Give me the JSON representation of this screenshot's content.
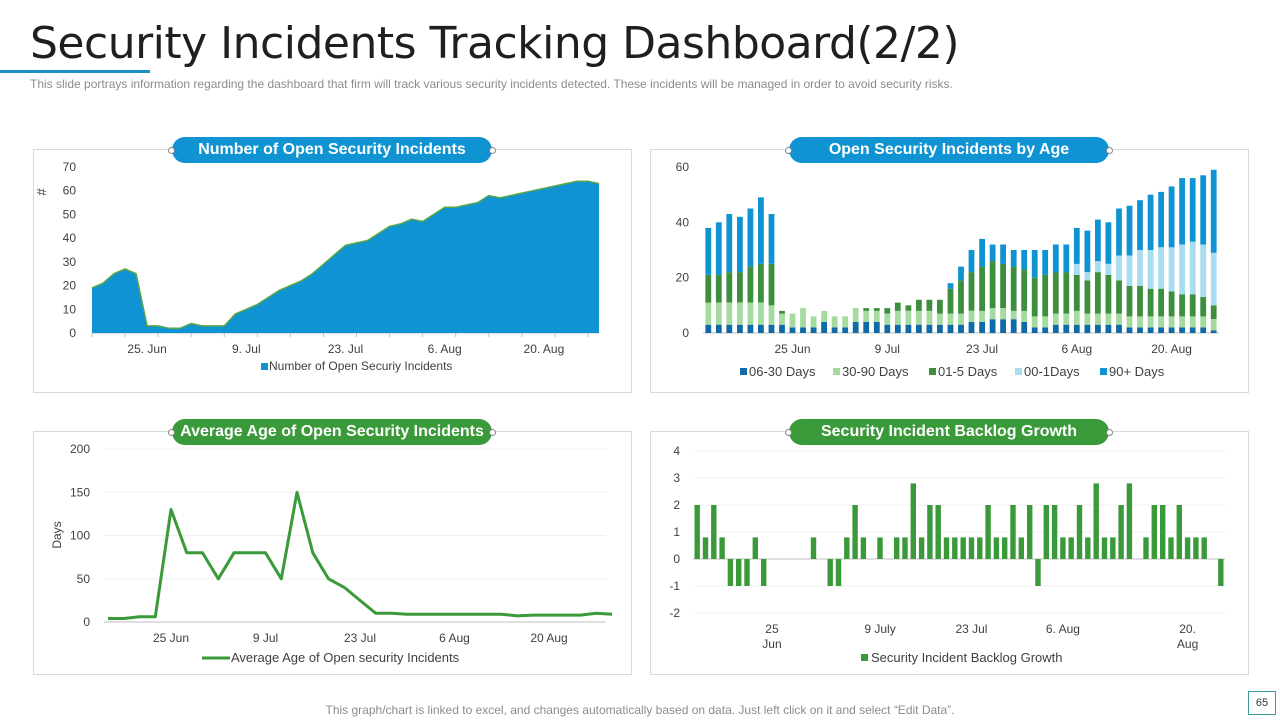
{
  "page": {
    "title": "Security Incidents Tracking Dashboard(2/2)",
    "subtitle": "This slide portrays information  regarding the dashboard  that firm will track various  security incidents detected. These  incidents will be managed  in order to avoid  security risks.",
    "footer": "This graph/chart is linked to excel, and changes automatically based on data. Just left click on it and select “Edit Data”.",
    "page_number": "65"
  },
  "colors": {
    "blue": "#0f93d2",
    "green": "#3a9a3a",
    "dark_blue": "#0f6aa8",
    "light_green": "#a6dba0",
    "light_blue": "#a8dcef",
    "green2": "#3d8f3d"
  },
  "chart_data": [
    {
      "type": "area",
      "title": "Number of Open Security Incidents",
      "ylabel": "#",
      "ylim": [
        0,
        70
      ],
      "yticks": [
        0,
        10,
        20,
        30,
        40,
        50,
        60,
        70
      ],
      "xtick_labels": [
        "25. Jun",
        "9. Jul",
        "23. Jul",
        "6. Aug",
        "20. Aug"
      ],
      "xtick_index": [
        5,
        14,
        23,
        32,
        41
      ],
      "legend": "Number of Open Securiy Incidents",
      "values": [
        19,
        21,
        25,
        27,
        25,
        3,
        3,
        2,
        2,
        4,
        3,
        3,
        3,
        8,
        10,
        12,
        15,
        18,
        20,
        22,
        25,
        29,
        33,
        37,
        38,
        39,
        42,
        45,
        46,
        48,
        47,
        50,
        53,
        53,
        54,
        55,
        58,
        57,
        58,
        59,
        60,
        61,
        62,
        63,
        64,
        64,
        63
      ]
    },
    {
      "type": "bar",
      "stacked": true,
      "title": "Open Security Incidents by Age",
      "ylim": [
        0,
        60
      ],
      "yticks": [
        0,
        20,
        40,
        60
      ],
      "xtick_labels": [
        "25 Jun",
        "9 Jul",
        "23 Jul",
        "6 Aug",
        "20. Aug"
      ],
      "xtick_index": [
        8,
        17,
        26,
        35,
        44
      ],
      "series": [
        {
          "name": "06-30 Days",
          "values": [
            3,
            3,
            3,
            3,
            3,
            3,
            3,
            3,
            2,
            2,
            2,
            4,
            2,
            2,
            4,
            4,
            4,
            3,
            3,
            3,
            3,
            3,
            3,
            3,
            3,
            4,
            4,
            5,
            5,
            5,
            4,
            2,
            2,
            3,
            3,
            3,
            3,
            3,
            3,
            3,
            2,
            2,
            2,
            2,
            2,
            2,
            2,
            2,
            1
          ]
        },
        {
          "name": "30-90 Days",
          "values": [
            8,
            8,
            8,
            8,
            8,
            8,
            7,
            4,
            5,
            7,
            4,
            4,
            4,
            4,
            5,
            4,
            4,
            4,
            5,
            5,
            5,
            5,
            4,
            4,
            4,
            4,
            4,
            4,
            4,
            3,
            4,
            4,
            4,
            4,
            4,
            5,
            4,
            4,
            4,
            4,
            4,
            4,
            4,
            4,
            4,
            4,
            4,
            4,
            4
          ]
        },
        {
          "name": "01-5 Days",
          "values": [
            10,
            10,
            11,
            11,
            13,
            14,
            15,
            1,
            0,
            0,
            0,
            0,
            0,
            0,
            0,
            1,
            1,
            2,
            3,
            2,
            4,
            4,
            5,
            9,
            12,
            14,
            16,
            17,
            16,
            16,
            15,
            14,
            15,
            15,
            15,
            13,
            12,
            15,
            14,
            12,
            11,
            11,
            10,
            10,
            9,
            8,
            8,
            7,
            5
          ]
        },
        {
          "name": "00-1Days",
          "values": [
            0,
            0,
            0,
            0,
            0,
            0,
            0,
            0,
            0,
            0,
            0,
            0,
            0,
            0,
            0,
            0,
            0,
            0,
            0,
            0,
            0,
            0,
            0,
            0,
            0,
            0,
            0,
            0,
            0,
            0,
            0,
            0,
            0,
            0,
            0,
            4,
            3,
            4,
            4,
            9,
            11,
            13,
            14,
            15,
            16,
            18,
            19,
            19,
            19
          ]
        },
        {
          "name": "90+ Days",
          "values": [
            17,
            19,
            21,
            20,
            21,
            24,
            18,
            0,
            0,
            0,
            0,
            0,
            0,
            0,
            0,
            0,
            0,
            0,
            0,
            0,
            0,
            0,
            0,
            2,
            5,
            8,
            10,
            6,
            7,
            6,
            7,
            10,
            9,
            10,
            10,
            13,
            15,
            15,
            15,
            17,
            18,
            18,
            20,
            20,
            22,
            24,
            23,
            25,
            30
          ]
        }
      ]
    },
    {
      "type": "line",
      "title": "Average Age of Open Security Incidents",
      "ylabel": "Days",
      "ylim": [
        0,
        200
      ],
      "yticks": [
        0,
        50,
        100,
        150,
        200
      ],
      "xtick_labels": [
        "25 Jun",
        "9 Jul",
        "23 Jul",
        "6 Aug",
        "20 Aug"
      ],
      "xtick_index": [
        4,
        10,
        16,
        22,
        28
      ],
      "legend": "Average Age of Open security Incidents",
      "values": [
        4,
        4,
        6,
        6,
        130,
        80,
        80,
        50,
        80,
        80,
        80,
        50,
        150,
        80,
        50,
        40,
        25,
        10,
        10,
        9,
        9,
        9,
        9,
        9,
        9,
        9,
        7,
        8,
        8,
        8,
        8,
        10,
        9
      ]
    },
    {
      "type": "bar",
      "title": "Security Incident Backlog Growth",
      "ylim": [
        -2,
        4
      ],
      "yticks": [
        -2,
        -1,
        0,
        1,
        2,
        3,
        4
      ],
      "xtick_labels": [
        [
          "25",
          "Jun"
        ],
        [
          "9 July"
        ],
        [
          "23 Jul"
        ],
        [
          "6. Aug"
        ],
        [
          "20.",
          "Aug"
        ]
      ],
      "xtick_index": [
        9,
        22,
        33,
        44,
        59
      ],
      "legend": "Security Incident Backlog Growth",
      "values": [
        2,
        0.8,
        2,
        0.8,
        -1,
        -1,
        -1,
        0.8,
        -1,
        0,
        0,
        0,
        0,
        0,
        0.8,
        0,
        -1,
        -1,
        0.8,
        2,
        0.8,
        0,
        0.8,
        0,
        0.8,
        0.8,
        2.8,
        0.8,
        2,
        2,
        0.8,
        0.8,
        0.8,
        0.8,
        0.8,
        2,
        0.8,
        0.8,
        2,
        0.8,
        2,
        -1,
        2,
        2,
        0.8,
        0.8,
        2,
        0.8,
        2.8,
        0.8,
        0.8,
        2,
        2.8,
        0,
        0.8,
        2,
        2,
        0.8,
        2,
        0.8,
        0.8,
        0.8,
        0,
        -1
      ]
    }
  ]
}
